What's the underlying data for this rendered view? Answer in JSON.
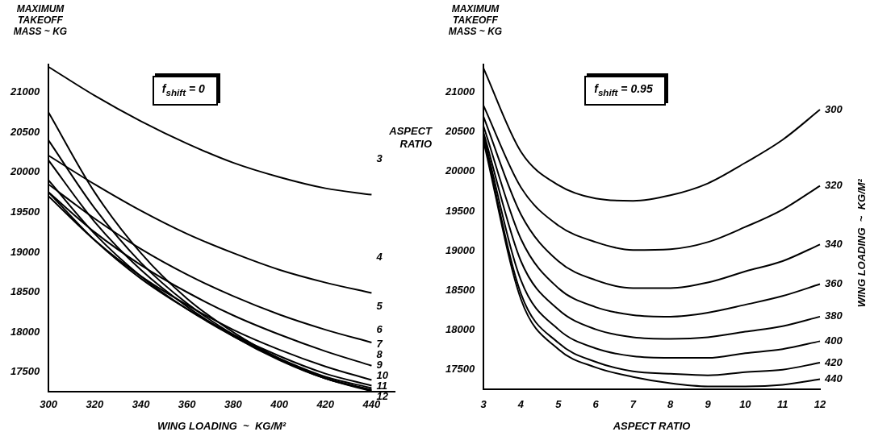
{
  "chart_data": [
    {
      "type": "line",
      "xlabel": "WING LOADING  ~  KG/M²",
      "ylabel": "MAXIMUM TAKEOFF MASS ~ KG",
      "legend_title": "ASPECT RATIO",
      "annotations": [
        "f$_{shift}$ = 0"
      ],
      "x": [
        300,
        320,
        340,
        360,
        380,
        400,
        420,
        440
      ],
      "xlim": [
        300,
        450
      ],
      "xticks": [
        300,
        320,
        340,
        360,
        380,
        400,
        420,
        440
      ],
      "ylim": [
        17250,
        21350
      ],
      "yticks": [
        17500,
        18000,
        18500,
        19000,
        19500,
        20000,
        20500,
        21000
      ],
      "legend": false,
      "grid": false,
      "marker": "none",
      "series": [
        {
          "name": "3",
          "color": "#000000",
          "values": [
            21320,
            20960,
            20640,
            20360,
            20120,
            19940,
            19800,
            19720
          ]
        },
        {
          "name": "4",
          "color": "#000000",
          "values": [
            20210,
            19850,
            19520,
            19230,
            18990,
            18780,
            18620,
            18490
          ]
        },
        {
          "name": "5",
          "color": "#000000",
          "values": [
            19850,
            19420,
            19040,
            18720,
            18450,
            18220,
            18030,
            17870
          ]
        },
        {
          "name": "6",
          "color": "#000000",
          "values": [
            19750,
            19250,
            18840,
            18500,
            18210,
            17970,
            17760,
            17580
          ]
        },
        {
          "name": "7",
          "color": "#000000",
          "values": [
            19700,
            19150,
            18700,
            18340,
            18030,
            17780,
            17570,
            17400
          ]
        },
        {
          "name": "8",
          "color": "#000000",
          "values": [
            19750,
            19150,
            18670,
            18290,
            17970,
            17700,
            17480,
            17330
          ]
        },
        {
          "name": "9",
          "color": "#000000",
          "values": [
            19900,
            19230,
            18700,
            18290,
            17950,
            17670,
            17440,
            17300
          ]
        },
        {
          "name": "10",
          "color": "#000000",
          "values": [
            20150,
            19380,
            18780,
            18320,
            17950,
            17650,
            17420,
            17280
          ]
        },
        {
          "name": "11",
          "color": "#000000",
          "values": [
            20400,
            19550,
            18870,
            18360,
            17970,
            17660,
            17420,
            17270
          ]
        },
        {
          "name": "12",
          "color": "#000000",
          "values": [
            20750,
            19750,
            18990,
            18420,
            18000,
            17670,
            17420,
            17260
          ]
        }
      ]
    },
    {
      "type": "line",
      "xlabel": "ASPECT RATIO",
      "ylabel": "MAXIMUM TAKEOFF MASS ~ KG",
      "legend_title": "WING LOADING  ~  KG/M²",
      "annotations": [
        "f$_{shift}$ = 0.95"
      ],
      "categories": [
        "3",
        "4",
        "5",
        "6",
        "7",
        "8",
        "9",
        "10",
        "11",
        "12"
      ],
      "ylim": [
        17250,
        21350
      ],
      "yticks": [
        17500,
        18000,
        18500,
        19000,
        19500,
        20000,
        20500,
        21000
      ],
      "legend": false,
      "grid": false,
      "marker": "none",
      "series": [
        {
          "name": "300",
          "color": "#000000",
          "values": [
            21300,
            20250,
            19830,
            19660,
            19630,
            19700,
            19850,
            20110,
            20400,
            20780
          ]
        },
        {
          "name": "320",
          "color": "#000000",
          "values": [
            20830,
            19800,
            19320,
            19110,
            19010,
            19020,
            19110,
            19300,
            19520,
            19820
          ]
        },
        {
          "name": "340",
          "color": "#000000",
          "values": [
            20690,
            19460,
            18870,
            18630,
            18530,
            18530,
            18600,
            18740,
            18870,
            19080
          ]
        },
        {
          "name": "360",
          "color": "#000000",
          "values": [
            20570,
            19150,
            18530,
            18290,
            18190,
            18170,
            18220,
            18320,
            18430,
            18580
          ]
        },
        {
          "name": "380",
          "color": "#000000",
          "values": [
            20490,
            18870,
            18260,
            18010,
            17910,
            17890,
            17910,
            17980,
            18050,
            18170
          ]
        },
        {
          "name": "400",
          "color": "#000000",
          "values": [
            20450,
            18630,
            18010,
            17770,
            17670,
            17650,
            17650,
            17710,
            17760,
            17860
          ]
        },
        {
          "name": "420",
          "color": "#000000",
          "values": [
            20420,
            18460,
            17840,
            17600,
            17480,
            17450,
            17430,
            17470,
            17500,
            17590
          ]
        },
        {
          "name": "440",
          "color": "#000000",
          "values": [
            20380,
            18390,
            17760,
            17530,
            17410,
            17330,
            17290,
            17290,
            17310,
            17380
          ]
        }
      ]
    }
  ]
}
